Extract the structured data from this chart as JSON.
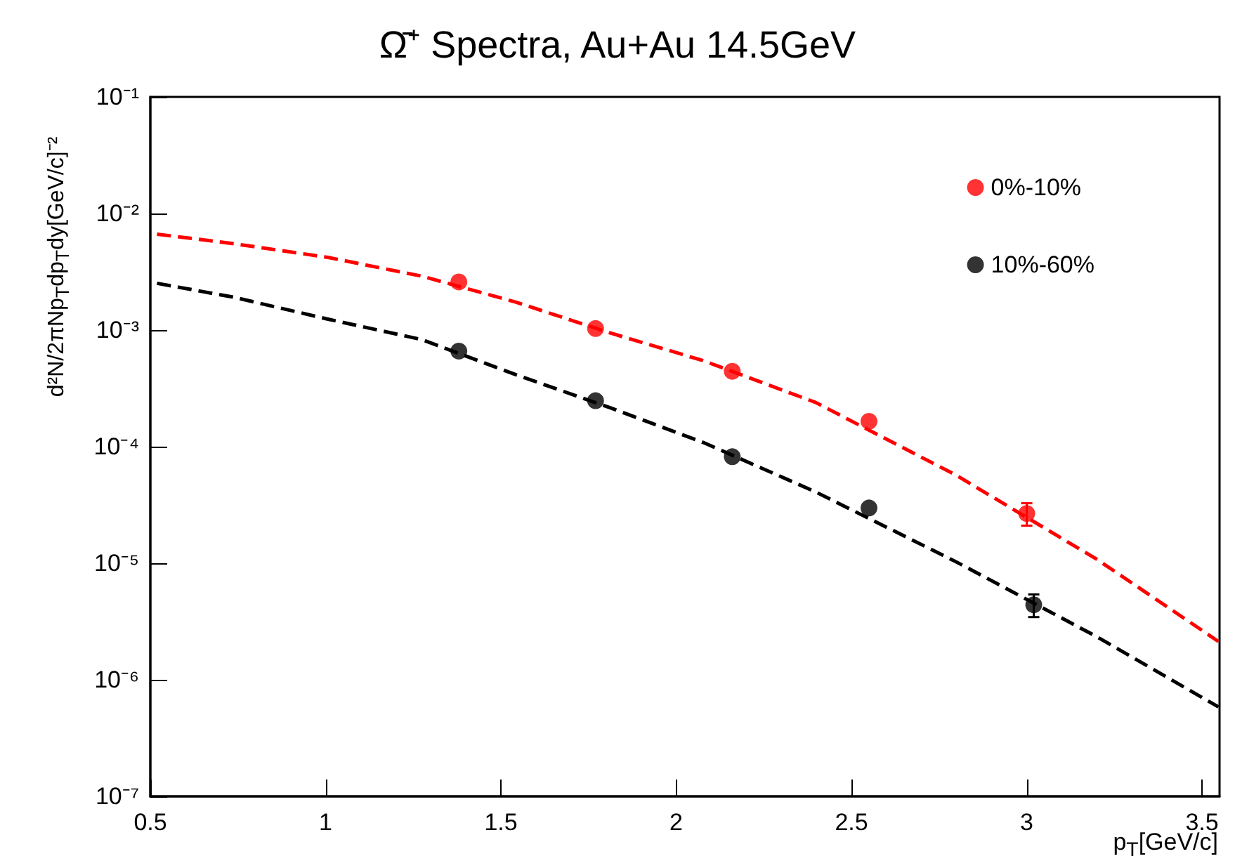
{
  "chart_data": {
    "type": "scatter",
    "title": "Ω̄⁺ Spectra, Au+Au 14.5GeV",
    "xlabel": "p$_{T}$[GeV/c]",
    "ylabel": "d²N/2πNp$_{T}$dp$_{T}$dy[GeV/c]⁻²",
    "log": "y",
    "grid": false,
    "legend": "top right",
    "xlim": [
      0.5,
      3.55
    ],
    "xticks": [
      0.5,
      1,
      1.5,
      2,
      2.5,
      3,
      3.5
    ],
    "ylim": [
      1e-07,
      0.1
    ],
    "yticks": [
      {
        "value": 1e-07,
        "label": "10⁻⁷"
      },
      {
        "value": 1e-06,
        "label": "10⁻⁶"
      },
      {
        "value": 1e-05,
        "label": "10⁻⁵"
      },
      {
        "value": 0.0001,
        "label": "10⁻⁴"
      },
      {
        "value": 0.001,
        "label": "10⁻³"
      },
      {
        "value": 0.01,
        "label": "10⁻²"
      },
      {
        "value": 0.1,
        "label": "10⁻¹"
      }
    ],
    "series": [
      {
        "name": "0%-10%",
        "color": "#ff0000",
        "marker": "circle",
        "x": [
          1.38,
          1.77,
          2.16,
          2.55,
          3.0
        ],
        "values": [
          0.00259,
          0.00103,
          0.000443,
          0.000165,
          2.67e-05
        ],
        "errors": [
          null,
          null,
          null,
          null,
          [
            2.1e-05,
            3.27e-05
          ]
        ]
      },
      {
        "name": "10%-60%",
        "color": "#000000",
        "marker": "circle",
        "x": [
          1.38,
          1.77,
          2.16,
          2.55,
          3.02
        ],
        "values": [
          0.00066,
          0.000248,
          8.2e-05,
          2.98e-05,
          4.4e-06
        ],
        "errors": [
          null,
          null,
          null,
          null,
          [
            3.45e-06,
            5.4e-06
          ]
        ]
      },
      {
        "type": "line",
        "color": "#ff0000",
        "line_style": "dashed",
        "marker": "none",
        "x": [
          0.519,
          0.739,
          1.007,
          1.274,
          1.542,
          1.809,
          2.076,
          2.397,
          2.798,
          3.2,
          3.547
        ],
        "values": [
          0.00665,
          0.0055,
          0.0042,
          0.0029,
          0.00174,
          0.00095,
          0.000548,
          0.00024,
          5.7e-05,
          1.08e-05,
          2.13e-06
        ]
      },
      {
        "type": "line",
        "color": "#000000",
        "line_style": "dashed",
        "marker": "none",
        "x": [
          0.519,
          0.739,
          1.007,
          1.274,
          1.542,
          1.809,
          2.076,
          2.397,
          2.798,
          3.2,
          3.547
        ],
        "values": [
          0.00252,
          0.00191,
          0.00124,
          0.00083,
          0.000415,
          0.000217,
          0.000109,
          4.1e-05,
          1.03e-05,
          2.34e-06,
          5.85e-07
        ]
      }
    ]
  }
}
